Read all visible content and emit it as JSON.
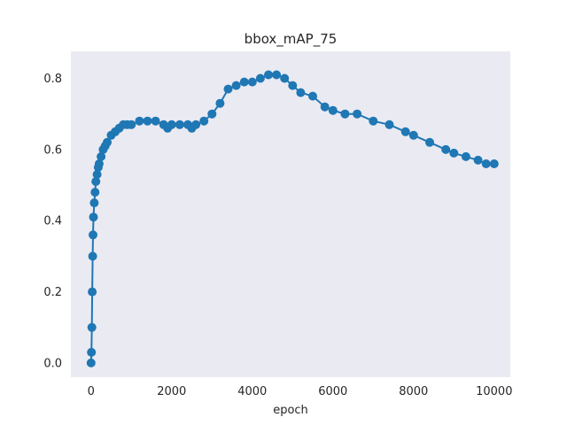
{
  "chart_data": {
    "type": "scatter",
    "title": "bbox_mAP_75",
    "xlabel": "epoch",
    "ylabel": "",
    "xlim": [
      -500,
      10400
    ],
    "ylim": [
      -0.04,
      0.876
    ],
    "x_ticks": [
      0,
      2000,
      4000,
      6000,
      8000,
      10000
    ],
    "x_tick_labels": [
      "0",
      "2000",
      "4000",
      "6000",
      "8000",
      "10000"
    ],
    "y_ticks": [
      0.0,
      0.2,
      0.4,
      0.6,
      0.8
    ],
    "y_tick_labels": [
      "0.0",
      "0.2",
      "0.4",
      "0.6",
      "0.8"
    ],
    "grid": false,
    "background_color": "#EAEAF2",
    "series_color": "#1F77B4",
    "marker": "o",
    "connected_line": true,
    "series": [
      {
        "x": [
          0,
          10,
          20,
          30,
          40,
          50,
          60,
          80,
          100,
          120,
          150,
          180,
          200,
          250,
          300,
          350,
          400,
          500,
          600,
          700,
          800,
          900,
          1000,
          1200,
          1400,
          1600,
          1800,
          1900,
          2000,
          2200,
          2400,
          2500,
          2600,
          2800,
          3000,
          3200,
          3400,
          3600,
          3800,
          4000,
          4200,
          4400,
          4600,
          4800,
          5000,
          5200,
          5500,
          5800,
          6000,
          6300,
          6600,
          7000,
          7400,
          7800,
          8000,
          8400,
          8800,
          9000,
          9300,
          9600,
          9800,
          10000
        ],
        "y": [
          0.0,
          0.03,
          0.1,
          0.2,
          0.3,
          0.36,
          0.41,
          0.45,
          0.48,
          0.51,
          0.53,
          0.55,
          0.56,
          0.58,
          0.6,
          0.61,
          0.62,
          0.64,
          0.65,
          0.66,
          0.67,
          0.67,
          0.67,
          0.68,
          0.68,
          0.68,
          0.67,
          0.66,
          0.67,
          0.67,
          0.67,
          0.66,
          0.67,
          0.68,
          0.7,
          0.73,
          0.77,
          0.78,
          0.79,
          0.79,
          0.8,
          0.81,
          0.81,
          0.8,
          0.78,
          0.76,
          0.75,
          0.72,
          0.71,
          0.7,
          0.7,
          0.68,
          0.67,
          0.65,
          0.64,
          0.62,
          0.6,
          0.59,
          0.58,
          0.57,
          0.56,
          0.56
        ]
      }
    ]
  }
}
